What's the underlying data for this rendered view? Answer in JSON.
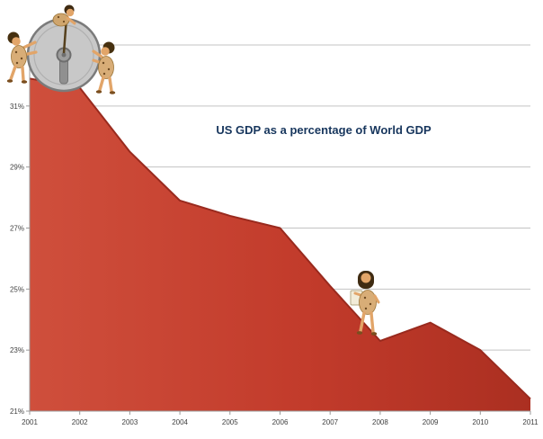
{
  "page": {
    "background": "#ffffff"
  },
  "chart_data": {
    "type": "area",
    "title": "US GDP as a percentage of World GDP",
    "categories": [
      "2001",
      "2002",
      "2003",
      "2004",
      "2005",
      "2006",
      "2007",
      "2008",
      "2009",
      "2010",
      "2011"
    ],
    "values": [
      31.9,
      31.6,
      29.5,
      27.9,
      27.4,
      27.0,
      25.1,
      23.3,
      23.9,
      23.0,
      21.4
    ],
    "unit": "%",
    "ylim": [
      21,
      33
    ],
    "grid": true,
    "legend": "none",
    "y_axis": {
      "ticks": [
        {
          "value": 21,
          "label": "21%"
        },
        {
          "value": 23,
          "label": "23%"
        },
        {
          "value": 25,
          "label": "25%"
        },
        {
          "value": 27,
          "label": "27%"
        },
        {
          "value": 29,
          "label": "29%"
        },
        {
          "value": 31,
          "label": "31%"
        },
        {
          "value": 33,
          "label": ""
        }
      ]
    },
    "colors": {
      "area_fill_light": "#cf4f3c",
      "area_fill": "#c23b2b",
      "area_fill_dark": "#ab2f21",
      "area_stroke": "#992a1e",
      "gridline": "#c3c3c3",
      "axis": "#9b9b9b",
      "tick_text": "#3f3f3f",
      "title": "#17365d"
    },
    "illustrations": [
      {
        "name": "cavemen-pushing-stone-wheel",
        "position": "top of 2001-2002 peak"
      },
      {
        "name": "caveman-climbing-slope",
        "position": "slope near 2008"
      }
    ]
  }
}
